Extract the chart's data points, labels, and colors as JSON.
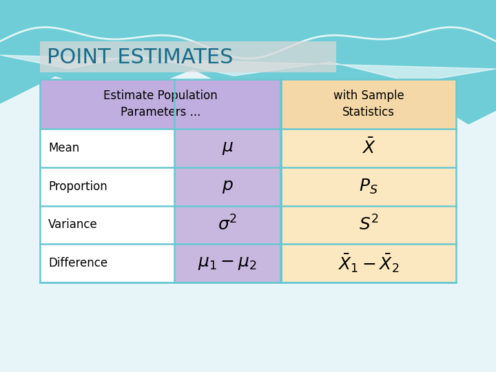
{
  "title": "POINT ESTIMATES",
  "title_color": "#1a6b8a",
  "title_fontsize": 22,
  "title_bg_color": "#d8d8d8",
  "bg_main_color": "#e8f5f8",
  "bg_teal_color": "#6ecdd6",
  "bg_white_wave": "#ffffff",
  "table": {
    "col1_header": "Estimate Population\nParameters ...",
    "col3_header": "with Sample\nStatistics",
    "header_col12_bg": "#c0aee0",
    "header_col3_bg": "#f5d8a8",
    "row_labels": [
      "Mean",
      "Proportion",
      "Variance",
      "Difference"
    ],
    "row_label_bg": "#ffffff",
    "col2_bg": "#c8b8e0",
    "col3_bg": "#fce8c0",
    "col2_formulas": [
      "$\\mu$",
      "$p$",
      "$\\sigma^2$",
      "$\\mu_1 - \\mu_2$"
    ],
    "col3_formulas": [
      "$\\bar{X}$",
      "$P_S$",
      "$S^2$",
      "$\\bar{X}_1 - \\bar{X}_2$"
    ],
    "border_color": "#68c8d0",
    "border_width": 1.8
  }
}
